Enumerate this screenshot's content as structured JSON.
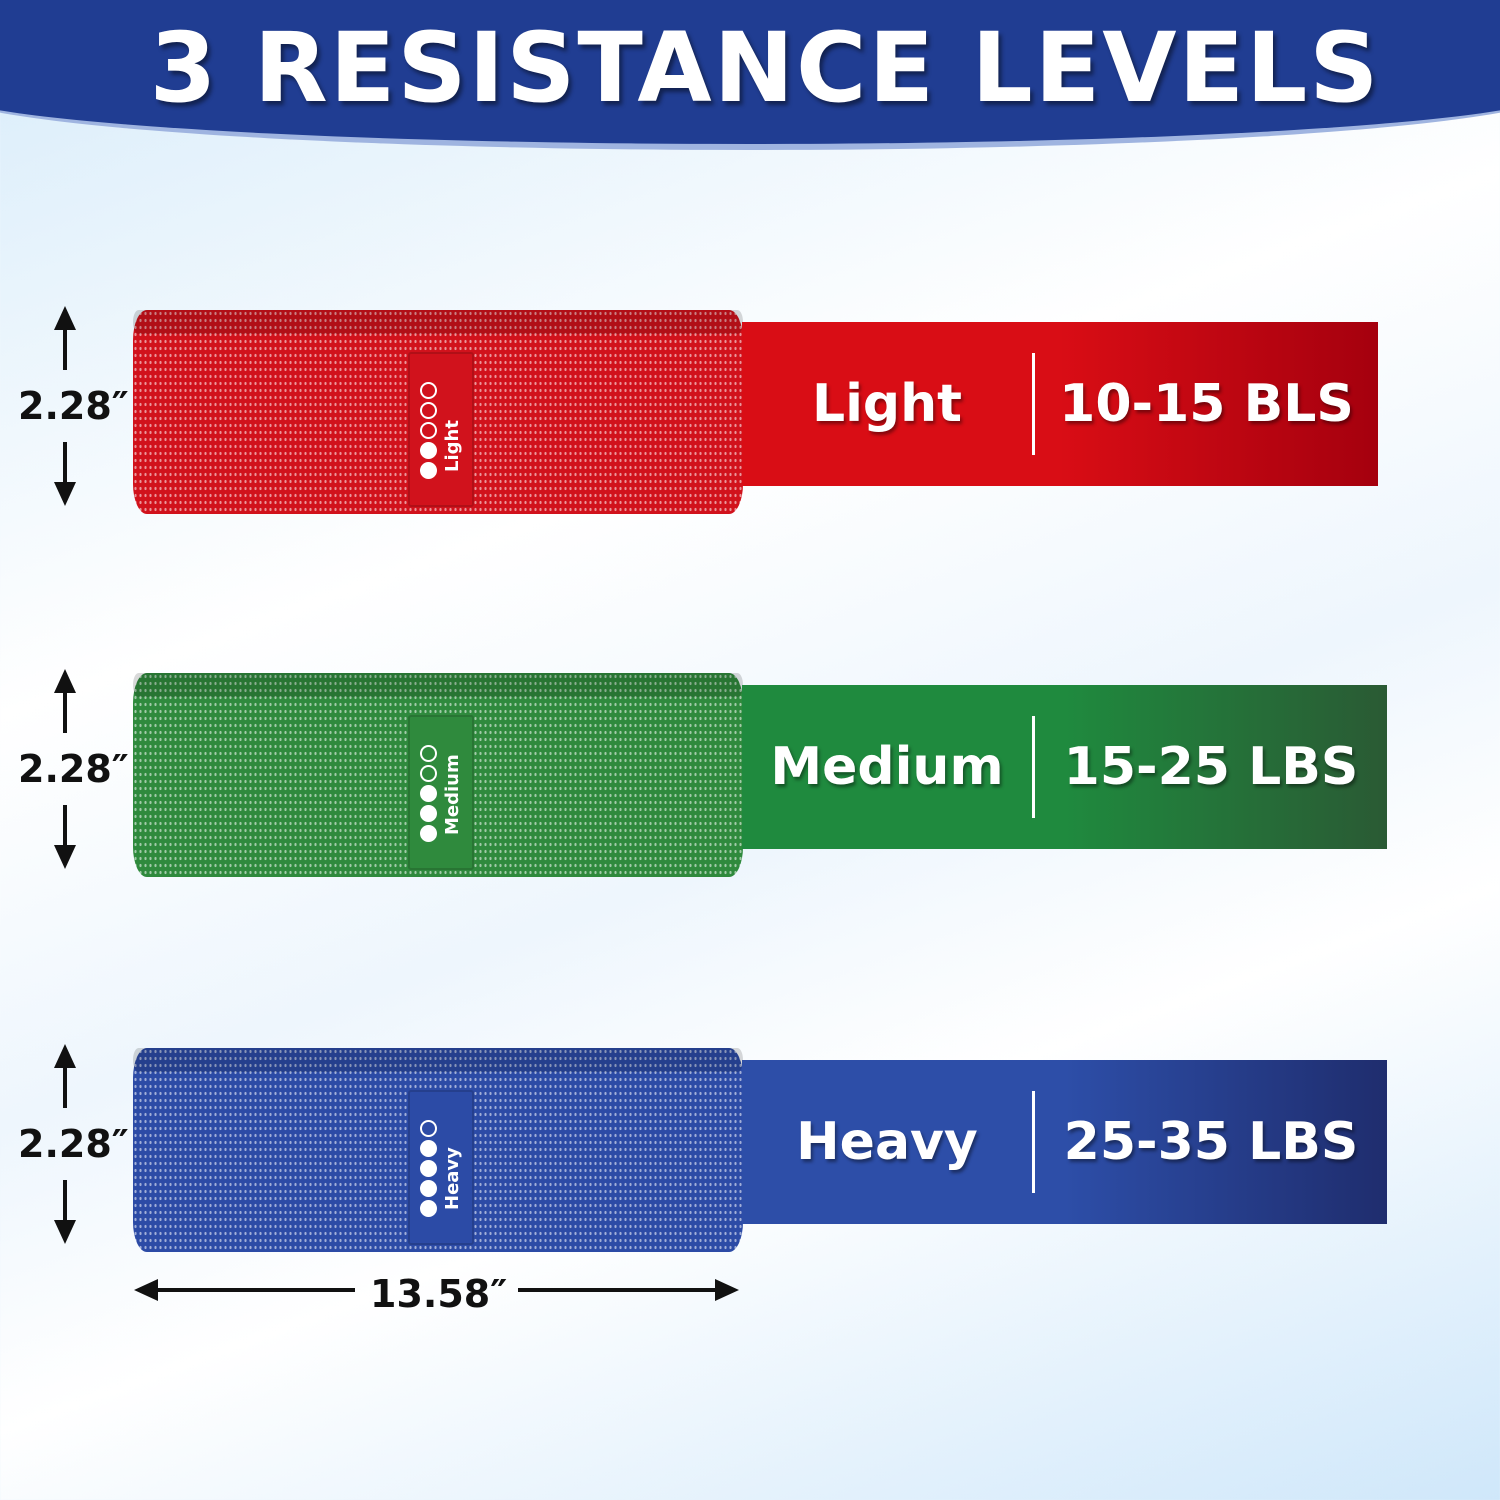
{
  "title": "3 RESISTANCE LEVELS",
  "bands": [
    {
      "level": "Light",
      "weight": "10-15 BLS",
      "height_label": "2.28″",
      "filled_dots": 2,
      "total_dots": 5,
      "color": "#d1121c",
      "bar_gradient": [
        "#d90d15",
        "#a5000e"
      ]
    },
    {
      "level": "Medium",
      "weight": "15-25 LBS",
      "height_label": "2.28″",
      "filled_dots": 3,
      "total_dots": 5,
      "color": "#2f8a3d",
      "bar_gradient": [
        "#1f8a3e",
        "#2a5a34"
      ]
    },
    {
      "level": "Heavy",
      "weight": "25-35 LBS",
      "height_label": "2.28″",
      "filled_dots": 4,
      "total_dots": 5,
      "color": "#2c4ba6",
      "bar_gradient": [
        "#2d4ea8",
        "#1f2d6e"
      ]
    }
  ],
  "width_label": "13.58″"
}
